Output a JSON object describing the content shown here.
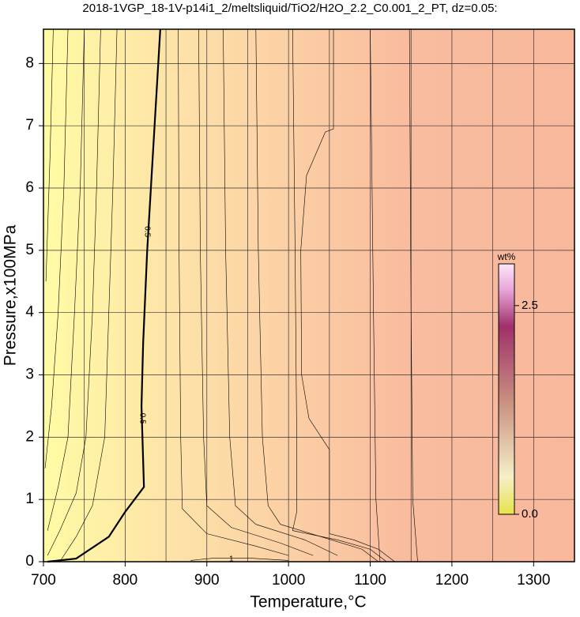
{
  "chart_data": {
    "type": "contour",
    "title": "2018-1VGP_18-1V-p14i1_2/meltsliquid/TiO2/H2O_2.2_C0.001_2_PT, dz=0.05:",
    "x_label": "Temperature,°C",
    "y_label": "Pressure,x100MPa",
    "xlim": [
      700,
      1350
    ],
    "ylim": [
      0,
      8.55
    ],
    "xticks": [
      700,
      800,
      900,
      1000,
      1100,
      1200,
      1300
    ],
    "yticks": [
      0,
      1,
      2,
      3,
      4,
      5,
      6,
      7,
      8
    ],
    "x_minor_grid": [
      750,
      850,
      950,
      1050,
      1150,
      1250
    ],
    "grid": true,
    "contours": [
      {
        "level": 0.5,
        "bold": true,
        "x": [
          705,
          740,
          780,
          800,
          823,
          820,
          822,
          827,
          843
        ],
        "y": [
          0,
          0.05,
          0.4,
          0.8,
          1.2,
          2.5,
          3.5,
          5,
          8.55
        ],
        "label_at": [
          [
            827,
            5.3
          ],
          [
            821,
            2.3
          ]
        ]
      },
      {
        "level": 1,
        "x": [
          880,
          910,
          950,
          1000
        ],
        "y": [
          0.02,
          0.06,
          0.06,
          0.02
        ],
        "label_at": [
          [
            930,
            0.04
          ]
        ]
      },
      {
        "x": [
          1148,
          1150,
          1152,
          1158
        ],
        "y": [
          8.55,
          4,
          1,
          0
        ]
      },
      {
        "x": [
          1100,
          1104,
          1107,
          1112
        ],
        "y": [
          8.55,
          4,
          1,
          0
        ]
      },
      {
        "x": [
          1055,
          1055,
          1045,
          1022,
          1015,
          1016,
          1025,
          1045,
          1050,
          1050,
          1080,
          1110,
          1130
        ],
        "y": [
          8.55,
          6.95,
          6.9,
          6.2,
          5,
          3,
          2.3,
          1.9,
          1.8,
          0.45,
          0.35,
          0.2,
          0
        ]
      },
      {
        "x": [
          1005,
          1008,
          1010,
          1010,
          1005,
          1060,
          1100,
          1120
        ],
        "y": [
          8.55,
          5,
          2,
          0.8,
          0.5,
          0.35,
          0.2,
          0
        ]
      },
      {
        "x": [
          960,
          963,
          968,
          975,
          990,
          1040,
          1090,
          1110
        ],
        "y": [
          8.55,
          5,
          2,
          0.9,
          0.6,
          0.4,
          0.2,
          0
        ]
      },
      {
        "x": [
          920,
          923,
          928,
          935,
          960,
          1020,
          1060
        ],
        "y": [
          8.55,
          5,
          2,
          0.9,
          0.6,
          0.35,
          0.1
        ]
      },
      {
        "x": [
          890,
          892,
          896,
          900,
          930,
          990,
          1030
        ],
        "y": [
          8.55,
          5,
          2,
          0.9,
          0.55,
          0.3,
          0.1
        ]
      },
      {
        "x": [
          865,
          866,
          868,
          870,
          900,
          960,
          1000
        ],
        "y": [
          8.55,
          5,
          2,
          0.85,
          0.45,
          0.25,
          0.1
        ]
      },
      {
        "x": [
          790,
          785,
          780,
          775,
          760,
          740,
          720
        ],
        "y": [
          8.55,
          6,
          4,
          2,
          0.9,
          0.4,
          0
        ]
      },
      {
        "x": [
          770,
          765,
          760,
          752,
          740,
          720,
          705
        ],
        "y": [
          8.55,
          6,
          4,
          2,
          1.1,
          0.5,
          0.1
        ]
      },
      {
        "x": [
          750,
          745,
          738,
          730,
          718,
          705
        ],
        "y": [
          8.55,
          6,
          4,
          2,
          1.2,
          0.5
        ]
      },
      {
        "x": [
          730,
          725,
          718,
          710,
          702
        ],
        "y": [
          8.55,
          6,
          4,
          2.5,
          1.5
        ]
      },
      {
        "x": [
          712,
          708,
          703
        ],
        "y": [
          8.55,
          6.5,
          4.5
        ]
      }
    ],
    "colorbar": {
      "title": "wt%",
      "lim": [
        0,
        3
      ],
      "ticks": [
        {
          "value": 0,
          "label": "0.0"
        },
        2.5
      ]
    }
  }
}
